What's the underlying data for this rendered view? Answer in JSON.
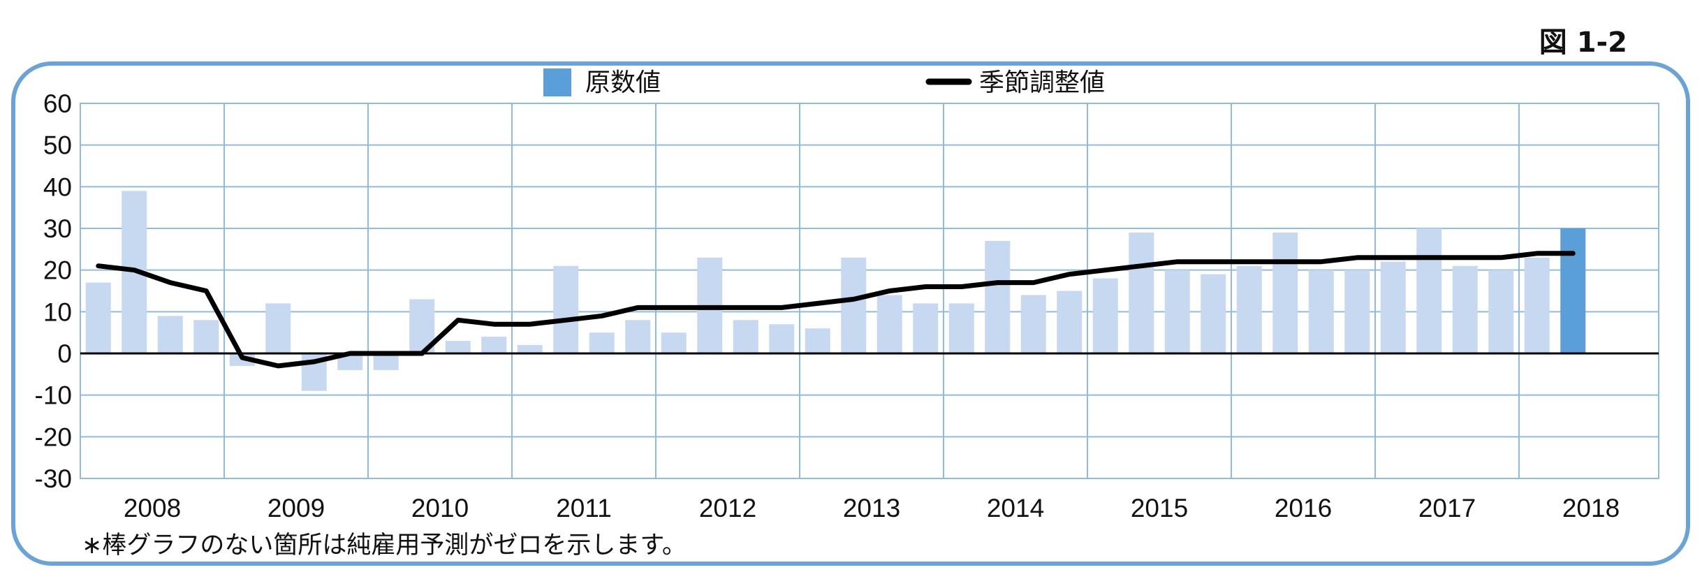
{
  "figure_label": "図 1-2",
  "footnote": "∗棒グラフのない箇所は純雇用予測がゼロを示します。",
  "colors": {
    "bar_light": "#c6d9f0",
    "bar_highlight": "#5a9fd8",
    "line": "#000000",
    "grid": "#8fbbe0",
    "frame": "#6aa3d5"
  },
  "chart_data": {
    "type": "bar",
    "title": "",
    "xlabel": "",
    "ylabel": "",
    "ylim": [
      -30,
      60
    ],
    "yticks": [
      60,
      50,
      40,
      30,
      20,
      10,
      0,
      -10,
      -20,
      -30
    ],
    "year_labels": [
      "2008",
      "2009",
      "2010",
      "2011",
      "2012",
      "2013",
      "2014",
      "2015",
      "2016",
      "2017",
      "2018"
    ],
    "quarters_per_year": 4,
    "grid": true,
    "legend_position": "top",
    "series": [
      {
        "name": "原数値",
        "type": "bar",
        "values": [
          17,
          39,
          9,
          8,
          -3,
          12,
          -9,
          -4,
          -4,
          13,
          3,
          4,
          2,
          21,
          5,
          8,
          5,
          23,
          8,
          7,
          6,
          23,
          14,
          12,
          12,
          27,
          14,
          15,
          18,
          29,
          20,
          19,
          21,
          29,
          20,
          20,
          22,
          30,
          21,
          20,
          23,
          30
        ],
        "highlight_last": true
      },
      {
        "name": "季節調整値",
        "type": "line",
        "values": [
          21,
          20,
          17,
          15,
          -1,
          -3,
          -2,
          0,
          0,
          0,
          8,
          7,
          7,
          8,
          9,
          11,
          11,
          11,
          11,
          11,
          12,
          13,
          15,
          16,
          16,
          17,
          17,
          19,
          20,
          21,
          22,
          22,
          22,
          22,
          22,
          23,
          23,
          23,
          23,
          23,
          24,
          24
        ]
      }
    ]
  }
}
